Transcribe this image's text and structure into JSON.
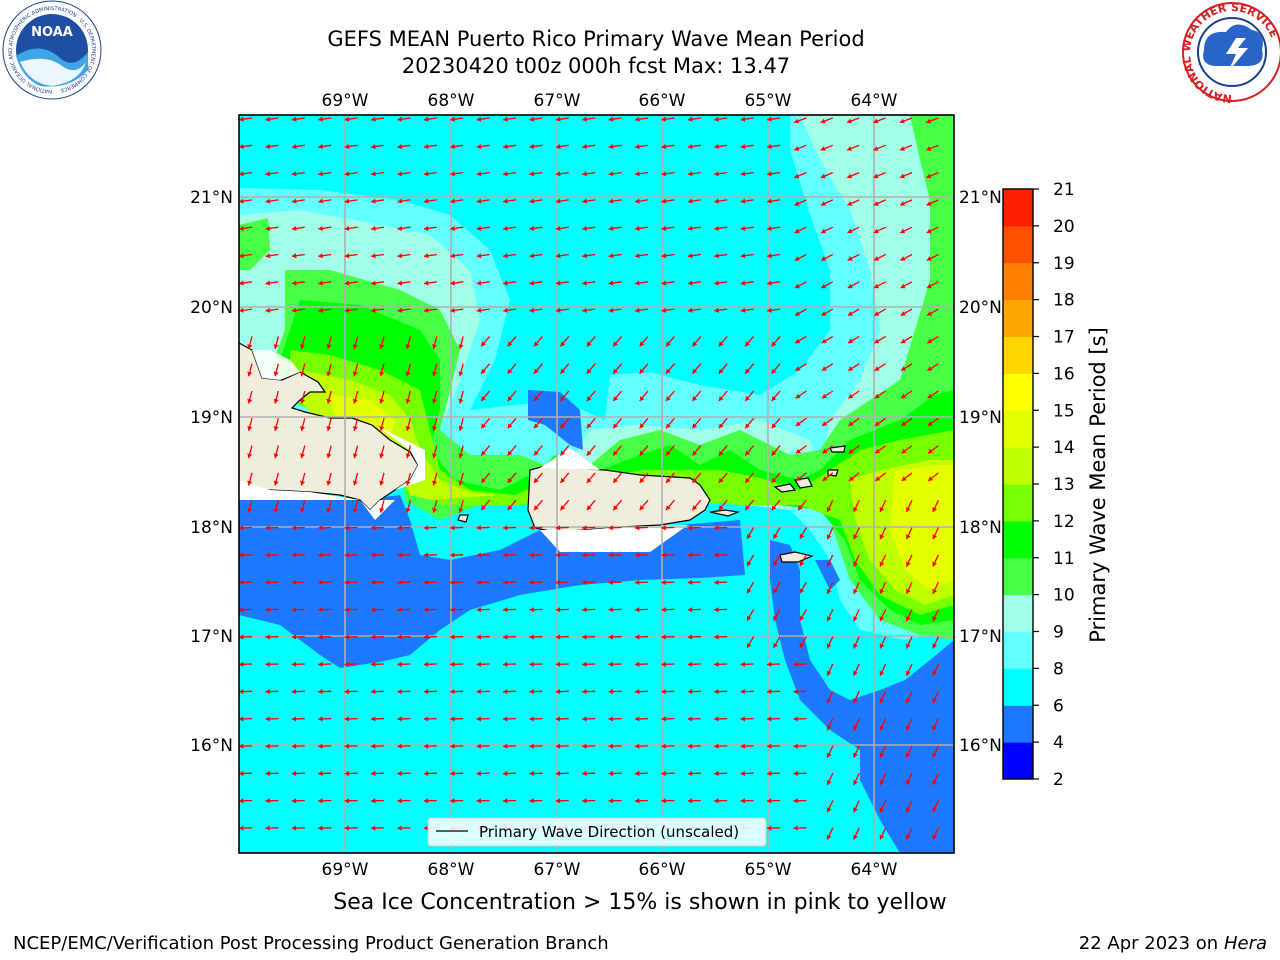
{
  "title_line1": "GEFS MEAN Puerto Rico Primary Wave Mean Period",
  "title_line2": "20230420 t00z 000h fcst   Max: 13.47",
  "longitude_labels": [
    "69°W",
    "68°W",
    "67°W",
    "66°W",
    "65°W",
    "64°W"
  ],
  "latitude_labels": [
    "21°N",
    "20°N",
    "19°N",
    "18°N",
    "17°N",
    "16°N"
  ],
  "legend_label": "Primary Wave Direction (unscaled)",
  "colorbar": {
    "label": "Primary Wave Mean Period [s]",
    "ticks": [
      "2",
      "4",
      "6",
      "8",
      "9",
      "10",
      "11",
      "12",
      "13",
      "14",
      "15",
      "16",
      "17",
      "18",
      "19",
      "20",
      "21"
    ],
    "colors": [
      "#0000ff",
      "#1e78ff",
      "#00ffff",
      "#64ffff",
      "#a0ffe6",
      "#46ff46",
      "#00ff00",
      "#78ff00",
      "#bfff00",
      "#e6ff00",
      "#ffff00",
      "#ffd700",
      "#ffa500",
      "#ff7f00",
      "#ff5000",
      "#ff2000",
      "#ff0000"
    ]
  },
  "arrow_color": "#ff0000",
  "land_color": "#f0eddc",
  "note": "Sea Ice Concentration > 15% is shown in pink to yellow",
  "footer_left": "NCEP/EMC/Verification Post Processing Product Generation Branch",
  "footer_right_prefix": "22 Apr 2023 on ",
  "footer_right_host": "Hera",
  "logos": {
    "noaa_text": "NOAA",
    "noaa_ring": "NATIONAL OCEANIC AND ATMOSPHERIC ADMINISTRATION · U.S. DEPARTMENT OF COMMERCE",
    "nws_ring": "NATIONAL WEATHER SERVICE"
  }
}
